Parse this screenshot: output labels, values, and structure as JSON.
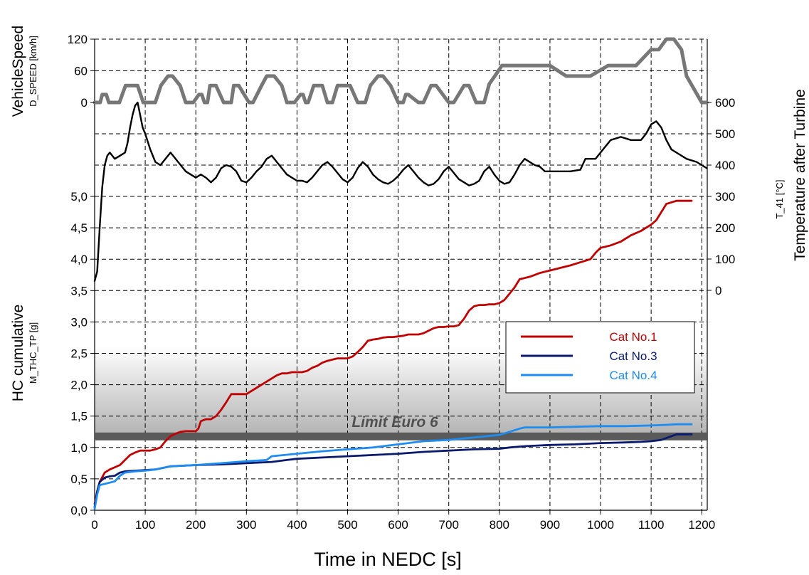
{
  "chart_data": {
    "type": "line",
    "xlabel": "Time in NEDC [s]",
    "xlim": [
      0,
      1210
    ],
    "x_ticks": [
      "0",
      "100",
      "200",
      "300",
      "400",
      "500",
      "600",
      "700",
      "800",
      "900",
      "1000",
      "1100",
      "1200"
    ],
    "grid": true,
    "legend_position": "right",
    "axes": {
      "speed": {
        "label": "VehicleSpeed",
        "sublabel": "D_SPEED [km/h]",
        "ylim": [
          0,
          120
        ],
        "ticks": [
          "0",
          "60",
          "120"
        ]
      },
      "temperature": {
        "label": "Temperature after Turbine",
        "sublabel": "T_41 [°C]",
        "ylim": [
          0,
          600
        ],
        "ticks": [
          "0",
          "100",
          "200",
          "300",
          "400",
          "500",
          "600"
        ]
      },
      "hc": {
        "label": "HC cumulative",
        "sublabel": "M_THC_TP [g]",
        "ylim": [
          0,
          5.0
        ],
        "ticks": [
          "0,0",
          "0,5",
          "1,0",
          "1,5",
          "2,0",
          "2,5",
          "3,0",
          "3,5",
          "4,0",
          "4,5",
          "5,0"
        ]
      }
    },
    "limit": {
      "label": "Limit Euro 6",
      "value": 1.17
    },
    "series": [
      {
        "name": "Cat No.1",
        "axis": "hc",
        "color": "#c00000",
        "x": [
          0,
          5,
          10,
          20,
          30,
          50,
          60,
          70,
          80,
          90,
          100,
          110,
          120,
          130,
          140,
          150,
          160,
          170,
          180,
          190,
          200,
          205,
          210,
          220,
          230,
          240,
          250,
          260,
          270,
          280,
          290,
          300,
          320,
          340,
          350,
          360,
          370,
          380,
          390,
          400,
          410,
          420,
          430,
          440,
          450,
          460,
          470,
          480,
          490,
          500,
          510,
          520,
          530,
          540,
          550,
          560,
          570,
          580,
          590,
          600,
          610,
          620,
          630,
          640,
          650,
          660,
          670,
          680,
          690,
          700,
          710,
          720,
          730,
          740,
          750,
          760,
          770,
          780,
          790,
          800,
          810,
          820,
          830,
          840,
          850,
          860,
          870,
          880,
          890,
          900,
          920,
          940,
          960,
          980,
          990,
          1000,
          1020,
          1040,
          1060,
          1080,
          1100,
          1110,
          1120,
          1130,
          1150,
          1180
        ],
        "y": [
          0.1,
          0.3,
          0.45,
          0.6,
          0.65,
          0.72,
          0.8,
          0.88,
          0.92,
          0.95,
          0.95,
          0.95,
          0.97,
          1.0,
          1.1,
          1.18,
          1.22,
          1.25,
          1.26,
          1.26,
          1.26,
          1.3,
          1.42,
          1.45,
          1.45,
          1.5,
          1.6,
          1.72,
          1.85,
          1.85,
          1.85,
          1.85,
          1.95,
          2.05,
          2.1,
          2.15,
          2.18,
          2.18,
          2.2,
          2.2,
          2.2,
          2.22,
          2.27,
          2.3,
          2.35,
          2.38,
          2.4,
          2.42,
          2.42,
          2.42,
          2.45,
          2.52,
          2.6,
          2.7,
          2.72,
          2.73,
          2.75,
          2.76,
          2.76,
          2.77,
          2.78,
          2.8,
          2.8,
          2.8,
          2.82,
          2.86,
          2.9,
          2.92,
          2.92,
          2.93,
          2.93,
          2.95,
          3.05,
          3.18,
          3.25,
          3.27,
          3.27,
          3.28,
          3.28,
          3.3,
          3.35,
          3.45,
          3.55,
          3.68,
          3.7,
          3.72,
          3.75,
          3.78,
          3.8,
          3.82,
          3.86,
          3.9,
          3.95,
          4.0,
          4.1,
          4.18,
          4.22,
          4.28,
          4.38,
          4.45,
          4.55,
          4.62,
          4.75,
          4.88,
          4.93,
          4.93
        ]
      },
      {
        "name": "Cat No.3",
        "axis": "hc",
        "color": "#0a1a6e",
        "x": [
          0,
          5,
          10,
          20,
          30,
          40,
          50,
          60,
          80,
          100,
          120,
          150,
          200,
          250,
          300,
          350,
          380,
          400,
          450,
          500,
          550,
          600,
          650,
          700,
          750,
          800,
          820,
          850,
          900,
          950,
          1000,
          1050,
          1080,
          1100,
          1120,
          1150,
          1180
        ],
        "y": [
          0.05,
          0.3,
          0.45,
          0.52,
          0.54,
          0.55,
          0.6,
          0.62,
          0.63,
          0.64,
          0.65,
          0.7,
          0.72,
          0.73,
          0.75,
          0.77,
          0.8,
          0.82,
          0.84,
          0.86,
          0.88,
          0.9,
          0.93,
          0.95,
          0.97,
          0.98,
          1.0,
          1.02,
          1.04,
          1.05,
          1.07,
          1.08,
          1.09,
          1.1,
          1.12,
          1.21,
          1.21
        ]
      },
      {
        "name": "Cat No.4",
        "axis": "hc",
        "color": "#1e8cf0",
        "x": [
          0,
          5,
          10,
          20,
          30,
          40,
          50,
          60,
          80,
          100,
          120,
          150,
          200,
          250,
          300,
          340,
          350,
          400,
          450,
          500,
          550,
          600,
          650,
          700,
          750,
          800,
          820,
          840,
          850,
          900,
          950,
          1000,
          1050,
          1100,
          1130,
          1150,
          1180
        ],
        "y": [
          0.02,
          0.25,
          0.4,
          0.42,
          0.44,
          0.46,
          0.55,
          0.6,
          0.62,
          0.63,
          0.65,
          0.7,
          0.72,
          0.75,
          0.78,
          0.8,
          0.86,
          0.9,
          0.94,
          0.97,
          1.0,
          1.05,
          1.1,
          1.12,
          1.16,
          1.2,
          1.25,
          1.3,
          1.32,
          1.32,
          1.33,
          1.34,
          1.34,
          1.35,
          1.36,
          1.37,
          1.37
        ]
      },
      {
        "name": "T_41",
        "axis": "temperature",
        "color": "#000000",
        "show_in_legend": false,
        "x": [
          0,
          5,
          10,
          15,
          20,
          25,
          30,
          40,
          50,
          60,
          65,
          70,
          75,
          80,
          85,
          90,
          95,
          100,
          110,
          120,
          130,
          140,
          150,
          160,
          170,
          180,
          190,
          200,
          210,
          220,
          230,
          240,
          250,
          260,
          270,
          280,
          290,
          300,
          310,
          320,
          330,
          340,
          350,
          360,
          370,
          380,
          390,
          400,
          410,
          420,
          430,
          440,
          450,
          460,
          470,
          480,
          490,
          500,
          510,
          520,
          530,
          540,
          550,
          560,
          570,
          580,
          590,
          600,
          610,
          620,
          630,
          640,
          650,
          660,
          670,
          680,
          690,
          700,
          710,
          720,
          730,
          740,
          750,
          760,
          770,
          780,
          790,
          800,
          810,
          820,
          830,
          840,
          850,
          860,
          870,
          880,
          890,
          900,
          920,
          940,
          960,
          970,
          980,
          990,
          1000,
          1020,
          1040,
          1060,
          1080,
          1090,
          1100,
          1110,
          1120,
          1130,
          1140,
          1150,
          1170,
          1190,
          1210
        ],
        "y": [
          30,
          60,
          200,
          330,
          400,
          430,
          440,
          420,
          430,
          440,
          470,
          520,
          560,
          590,
          600,
          560,
          520,
          500,
          450,
          410,
          400,
          420,
          440,
          420,
          400,
          380,
          370,
          360,
          370,
          360,
          345,
          360,
          390,
          400,
          395,
          380,
          350,
          345,
          360,
          380,
          395,
          420,
          430,
          410,
          390,
          370,
          360,
          350,
          350,
          345,
          360,
          380,
          400,
          410,
          395,
          375,
          355,
          345,
          360,
          390,
          410,
          395,
          370,
          355,
          345,
          340,
          350,
          365,
          385,
          400,
          380,
          360,
          345,
          335,
          340,
          355,
          380,
          395,
          375,
          355,
          345,
          335,
          340,
          350,
          380,
          395,
          370,
          350,
          340,
          345,
          370,
          400,
          420,
          410,
          400,
          395,
          380,
          380,
          380,
          380,
          385,
          420,
          420,
          420,
          440,
          480,
          490,
          480,
          480,
          500,
          530,
          540,
          520,
          480,
          450,
          440,
          420,
          410,
          390
        ]
      },
      {
        "name": "D_SPEED",
        "axis": "speed",
        "color": "#777777",
        "show_in_legend": false,
        "x": [
          0,
          11,
          15,
          23,
          28,
          49,
          61,
          85,
          96,
          120,
          131,
          145,
          154,
          169,
          180,
          195,
          206,
          212,
          217,
          223,
          228,
          240,
          255,
          270,
          275,
          285,
          305,
          313,
          330,
          340,
          355,
          370,
          380,
          395,
          407,
          412,
          417,
          422,
          433,
          450,
          460,
          470,
          480,
          505,
          520,
          535,
          545,
          560,
          570,
          585,
          600,
          610,
          615,
          620,
          640,
          650,
          665,
          675,
          700,
          710,
          730,
          740,
          754,
          770,
          780,
          791,
          805,
          830,
          850,
          900,
          932,
          950,
          980,
          1015,
          1040,
          1070,
          1100,
          1115,
          1130,
          1145,
          1160,
          1170,
          1200,
          1210
        ],
        "y": [
          0,
          0,
          15,
          15,
          0,
          0,
          32,
          32,
          0,
          0,
          32,
          50,
          50,
          32,
          0,
          0,
          15,
          15,
          0,
          0,
          32,
          32,
          0,
          0,
          32,
          32,
          0,
          0,
          32,
          50,
          50,
          32,
          0,
          0,
          15,
          15,
          0,
          0,
          32,
          32,
          0,
          0,
          32,
          32,
          0,
          0,
          32,
          50,
          50,
          32,
          0,
          0,
          15,
          15,
          0,
          0,
          32,
          32,
          0,
          0,
          32,
          32,
          0,
          0,
          35,
          50,
          70,
          70,
          70,
          70,
          50,
          50,
          50,
          70,
          70,
          70,
          100,
          100,
          120,
          120,
          100,
          50,
          0,
          0
        ]
      }
    ]
  }
}
